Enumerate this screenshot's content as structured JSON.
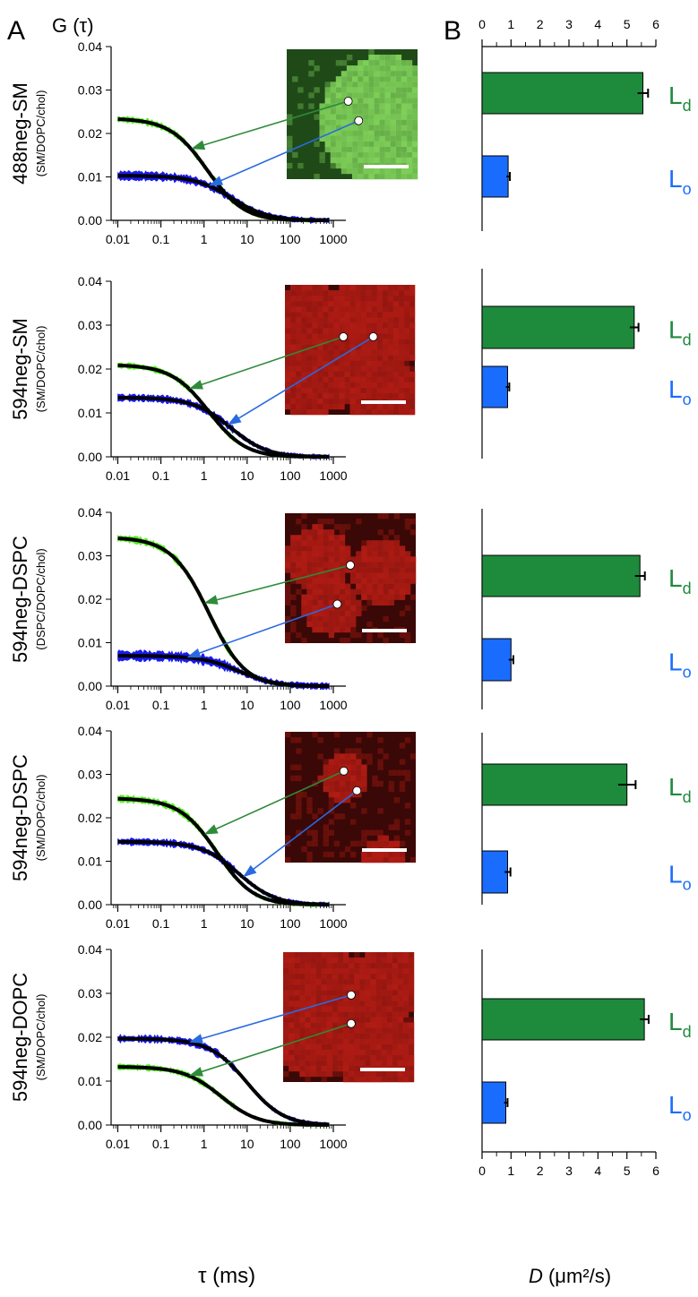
{
  "panel_labels": {
    "a": "A",
    "b": "B"
  },
  "panel_a": {
    "ylabel": "G (τ)",
    "xlabel": "τ (ms)",
    "y_ticks": [
      "0.00",
      "0.01",
      "0.02",
      "0.03",
      "0.04"
    ],
    "x_ticks": [
      "0.01",
      "0.1",
      "1",
      "10",
      "100",
      "1000"
    ]
  },
  "panel_b": {
    "xlabel": "D (μm²/s)",
    "xlabel_italic": "D",
    "xlabel_rest": " (μm²/s)",
    "x_ticks": [
      "0",
      "1",
      "2",
      "3",
      "4",
      "5",
      "6"
    ]
  },
  "phase_labels": {
    "ld_main": "L",
    "ld_sub": "d",
    "lo_main": "L",
    "lo_sub": "o"
  },
  "colors": {
    "ld_curve": "#55ee22",
    "lo_curve": "#1a1aee",
    "fit": "#000000",
    "ld_bar": "#1e8a3c",
    "lo_bar": "#1a6cff",
    "ld_text": "#1e8a3c",
    "lo_text": "#1a6cff",
    "ld_arrow": "#2e8b3a",
    "lo_arrow": "#2a6ae0",
    "image_green": "#3f8a2a",
    "image_red": "#b01c14"
  },
  "chart_data": [
    {
      "type": "line",
      "row_label": "488neg-SM",
      "sub_label": "(SM/DOPC/chol)",
      "image_color": "green",
      "xscale": "log",
      "xlim": [
        0.007,
        1000
      ],
      "ylim": [
        0,
        0.04
      ],
      "series": [
        {
          "phase": "Ld",
          "amplitude": 0.0235,
          "tau_d": 1.2,
          "noise": 0.0009
        },
        {
          "phase": "Lo",
          "amplitude": 0.0103,
          "tau_d": 4.5,
          "noise": 0.0012
        }
      ],
      "arrows": [
        {
          "phase": "Ld",
          "curve_tau": 0.5,
          "spot": [
            0.47,
            0.4
          ]
        },
        {
          "phase": "Lo",
          "curve_tau": 1.3,
          "spot": [
            0.55,
            0.55
          ]
        }
      ]
    },
    {
      "type": "line",
      "row_label": "594neg-SM",
      "sub_label": "(SM/DOPC/chol)",
      "image_color": "red",
      "xscale": "log",
      "xlim": [
        0.007,
        1000
      ],
      "ylim": [
        0,
        0.04
      ],
      "series": [
        {
          "phase": "Ld",
          "amplitude": 0.021,
          "tau_d": 1.3,
          "noise": 0.0008
        },
        {
          "phase": "Lo",
          "amplitude": 0.0135,
          "tau_d": 4.2,
          "noise": 0.001
        }
      ],
      "arrows": [
        {
          "phase": "Ld",
          "curve_tau": 0.45,
          "spot": [
            0.45,
            0.4
          ]
        },
        {
          "phase": "Lo",
          "curve_tau": 3.5,
          "spot": [
            0.68,
            0.4
          ]
        }
      ]
    },
    {
      "type": "line",
      "row_label": "594neg-DSPC",
      "sub_label": "(DSPC/DOPC/chol)",
      "image_color": "red",
      "xscale": "log",
      "xlim": [
        0.007,
        1000
      ],
      "ylim": [
        0,
        0.04
      ],
      "series": [
        {
          "phase": "Ld",
          "amplitude": 0.0343,
          "tau_d": 1.3,
          "noise": 0.001
        },
        {
          "phase": "Lo",
          "amplitude": 0.007,
          "tau_d": 6.5,
          "noise": 0.0014
        }
      ],
      "arrows": [
        {
          "phase": "Ld",
          "curve_tau": 1.0,
          "spot": [
            0.5,
            0.4
          ]
        },
        {
          "phase": "Lo",
          "curve_tau": 0.4,
          "spot": [
            0.4,
            0.7
          ]
        }
      ]
    },
    {
      "type": "line",
      "row_label": "594neg-DSPC",
      "sub_label": "(SM/DOPC/chol)",
      "image_color": "red",
      "xscale": "log",
      "xlim": [
        0.007,
        1000
      ],
      "ylim": [
        0,
        0.04
      ],
      "series": [
        {
          "phase": "Ld",
          "amplitude": 0.0245,
          "tau_d": 2.0,
          "noise": 0.001
        },
        {
          "phase": "Lo",
          "amplitude": 0.0145,
          "tau_d": 6.5,
          "noise": 0.001
        }
      ],
      "arrows": [
        {
          "phase": "Ld",
          "curve_tau": 1.0,
          "spot": [
            0.45,
            0.3
          ]
        },
        {
          "phase": "Lo",
          "curve_tau": 8.0,
          "spot": [
            0.55,
            0.45
          ]
        }
      ]
    },
    {
      "type": "line",
      "row_label": "594neg-DOPC",
      "sub_label": "(SM/DOPC/chol)",
      "image_color": "red",
      "xscale": "log",
      "xlim": [
        0.007,
        1000
      ],
      "ylim": [
        0,
        0.04
      ],
      "series": [
        {
          "phase": "Lo",
          "amplitude": 0.0197,
          "tau_d": 10.0,
          "noise": 0.001
        },
        {
          "phase": "Ld",
          "amplitude": 0.0133,
          "tau_d": 2.5,
          "noise": 0.0008
        }
      ],
      "arrows": [
        {
          "phase": "Lo",
          "curve_tau": 0.45,
          "spot": [
            0.52,
            0.33
          ]
        },
        {
          "phase": "Ld",
          "curve_tau": 0.45,
          "spot": [
            0.52,
            0.55
          ]
        }
      ]
    },
    {
      "type": "bar",
      "orientation": "horizontal",
      "xlim": [
        0,
        6
      ],
      "rows": [
        {
          "Ld": 5.55,
          "Ld_err": 0.18,
          "Lo": 0.9,
          "Lo_err": 0.06
        },
        {
          "Ld": 5.25,
          "Ld_err": 0.15,
          "Lo": 0.88,
          "Lo_err": 0.06
        },
        {
          "Ld": 5.45,
          "Ld_err": 0.17,
          "Lo": 1.0,
          "Lo_err": 0.08
        },
        {
          "Ld": 5.0,
          "Ld_err": 0.3,
          "Lo": 0.88,
          "Lo_err": 0.1
        },
        {
          "Ld": 5.6,
          "Ld_err": 0.15,
          "Lo": 0.82,
          "Lo_err": 0.06
        }
      ]
    }
  ]
}
